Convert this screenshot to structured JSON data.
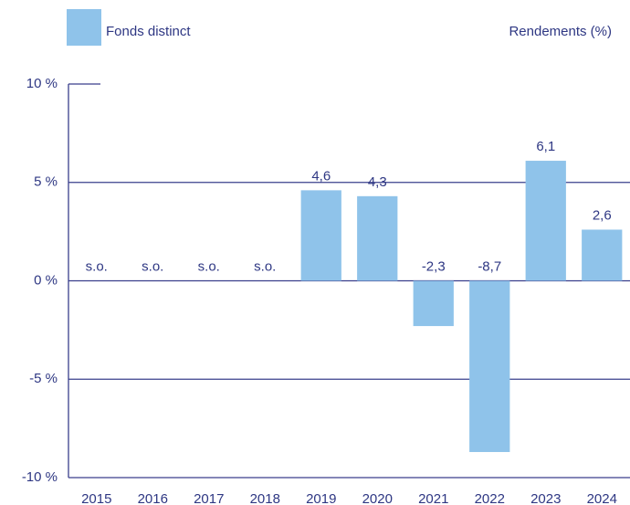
{
  "chart_data": {
    "type": "bar",
    "annotation": "Rendements (%)",
    "categories": [
      "2015",
      "2016",
      "2017",
      "2018",
      "2019",
      "2020",
      "2021",
      "2022",
      "2023",
      "2024"
    ],
    "series": [
      {
        "name": "Fonds distinct",
        "color": "#8fc3ea",
        "values": [
          null,
          null,
          null,
          null,
          4.6,
          4.3,
          -2.3,
          -8.7,
          6.1,
          2.6
        ],
        "value_labels": [
          "s.o.",
          "s.o.",
          "s.o.",
          "s.o.",
          "4,6",
          "4,3",
          "-2,3",
          "-8,7",
          "6,1",
          "2,6"
        ]
      }
    ],
    "ylim": [
      -10,
      10
    ],
    "yticks": [
      {
        "value": 10,
        "label": "10 %"
      },
      {
        "value": 5,
        "label": "5 %"
      },
      {
        "value": 0,
        "label": "0 %"
      },
      {
        "value": -5,
        "label": "-5 %"
      },
      {
        "value": -10,
        "label": "-10 %"
      }
    ],
    "grid": true
  }
}
